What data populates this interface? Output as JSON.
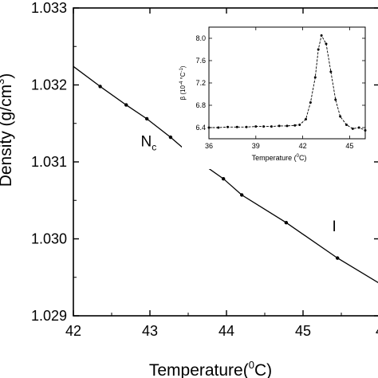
{
  "chart_data": [
    {
      "type": "line",
      "xlabel": "Temperature(°C)",
      "xlabel_main": "Temperature(",
      "xlabel_sup": "0",
      "xlabel_end": "C)",
      "ylabel_main": "Density (g/cm",
      "ylabel_sup": "3",
      "ylabel_end": ")",
      "xlim": [
        42,
        46
      ],
      "ylim": [
        1.029,
        1.033
      ],
      "xticks": [
        "42",
        "43",
        "44",
        "45",
        "4"
      ],
      "yticks": [
        "1.029",
        "1.030",
        "1.031",
        "1.032",
        "1.033"
      ],
      "annotations": [
        {
          "label": "N",
          "sub": "c",
          "x": 42.88,
          "y": 1.0312
        },
        {
          "label": "I",
          "sub": "",
          "x": 45.38,
          "y": 1.0301
        }
      ],
      "series": [
        {
          "x": [
            42.0,
            42.35,
            42.69,
            42.96,
            43.27,
            43.63,
            43.96,
            44.2,
            44.78,
            45.45,
            46.0
          ],
          "y": [
            1.03224,
            1.03198,
            1.03174,
            1.03156,
            1.03132,
            1.03101,
            1.03078,
            1.03057,
            1.03021,
            1.02975,
            1.02942
          ]
        }
      ]
    },
    {
      "type": "line",
      "xlabel": "Temperature (°C)",
      "xlabel_main": "Temperature (",
      "xlabel_sup": "0",
      "xlabel_end": "C)",
      "ylabel_main": "β (10",
      "ylabel_sup": "-4",
      "ylabel_mid": " °C",
      "ylabel_sup2": "-1",
      "ylabel_end": ")",
      "xlim": [
        36,
        46
      ],
      "ylim": [
        6.2,
        8.2
      ],
      "xticks": [
        "36",
        "39",
        "42",
        "45"
      ],
      "yticks": [
        "6.4",
        "6.8",
        "7.2",
        "7.6",
        "8.0"
      ],
      "series": [
        {
          "x": [
            36.0,
            36.6,
            37.2,
            37.8,
            38.4,
            39.0,
            39.5,
            40.0,
            40.5,
            41.0,
            41.5,
            41.8,
            42.2,
            42.5,
            42.8,
            43.0,
            43.2,
            43.5,
            43.8,
            44.1,
            44.4,
            44.8,
            45.2,
            45.6,
            46.0
          ],
          "y": [
            6.4,
            6.4,
            6.41,
            6.41,
            6.41,
            6.42,
            6.42,
            6.42,
            6.43,
            6.43,
            6.44,
            6.45,
            6.55,
            6.85,
            7.3,
            7.8,
            8.05,
            7.9,
            7.4,
            6.9,
            6.6,
            6.45,
            6.38,
            6.4,
            6.35
          ]
        }
      ]
    }
  ]
}
